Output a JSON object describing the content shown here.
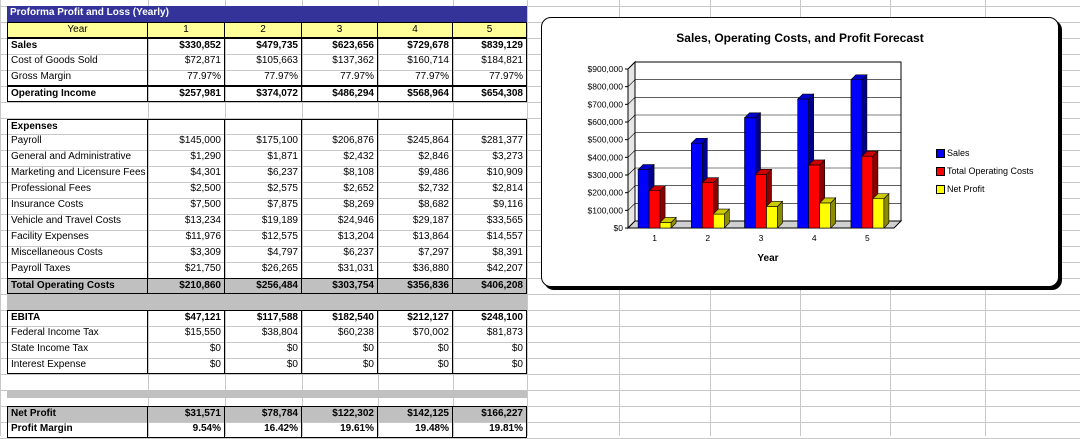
{
  "table": {
    "title": "Proforma Profit and Loss (Yearly)",
    "year_label": "Year",
    "years": [
      "1",
      "2",
      "3",
      "4",
      "5"
    ],
    "gross_rows": [
      {
        "label": "Sales",
        "values": [
          "$330,852",
          "$479,735",
          "$623,656",
          "$729,678",
          "$839,129"
        ],
        "bold": true
      },
      {
        "label": "Cost of Goods Sold",
        "values": [
          "$72,871",
          "$105,663",
          "$137,362",
          "$160,714",
          "$184,821"
        ],
        "bold": false
      },
      {
        "label": "Gross Margin",
        "values": [
          "77.97%",
          "77.97%",
          "77.97%",
          "77.97%",
          "77.97%"
        ],
        "bold": false
      }
    ],
    "operating_income": {
      "label": "Operating Income",
      "values": [
        "$257,981",
        "$374,072",
        "$486,294",
        "$568,964",
        "$654,308"
      ]
    },
    "expenses_header": "Expenses",
    "expense_rows": [
      {
        "label": "Payroll",
        "values": [
          "$145,000",
          "$175,100",
          "$206,876",
          "$245,864",
          "$281,377"
        ]
      },
      {
        "label": "General and Administrative",
        "values": [
          "$1,290",
          "$1,871",
          "$2,432",
          "$2,846",
          "$3,273"
        ]
      },
      {
        "label": "Marketing and Licensure Fees",
        "values": [
          "$4,301",
          "$6,237",
          "$8,108",
          "$9,486",
          "$10,909"
        ]
      },
      {
        "label": "Professional Fees",
        "values": [
          "$2,500",
          "$2,575",
          "$2,652",
          "$2,732",
          "$2,814"
        ]
      },
      {
        "label": "Insurance Costs",
        "values": [
          "$7,500",
          "$7,875",
          "$8,269",
          "$8,682",
          "$9,116"
        ]
      },
      {
        "label": "Vehicle and Travel Costs",
        "values": [
          "$13,234",
          "$19,189",
          "$24,946",
          "$29,187",
          "$33,565"
        ]
      },
      {
        "label": "Facility Expenses",
        "values": [
          "$11,976",
          "$12,575",
          "$13,204",
          "$13,864",
          "$14,557"
        ]
      },
      {
        "label": "Miscellaneous Costs",
        "values": [
          "$3,309",
          "$4,797",
          "$6,237",
          "$7,297",
          "$8,391"
        ]
      },
      {
        "label": "Payroll Taxes",
        "values": [
          "$21,750",
          "$26,265",
          "$31,031",
          "$36,880",
          "$42,207"
        ]
      }
    ],
    "total_operating": {
      "label": "Total Operating Costs",
      "values": [
        "$210,860",
        "$256,484",
        "$303,754",
        "$356,836",
        "$406,208"
      ]
    },
    "ebita": {
      "label": "EBITA",
      "values": [
        "$47,121",
        "$117,588",
        "$182,540",
        "$212,127",
        "$248,100"
      ]
    },
    "tax_rows": [
      {
        "label": "Federal Income Tax",
        "values": [
          "$15,550",
          "$38,804",
          "$60,238",
          "$70,002",
          "$81,873"
        ]
      },
      {
        "label": "State Income Tax",
        "values": [
          "$0",
          "$0",
          "$0",
          "$0",
          "$0"
        ]
      },
      {
        "label": "Interest Expense",
        "values": [
          "$0",
          "$0",
          "$0",
          "$0",
          "$0"
        ]
      }
    ],
    "net_profit": {
      "label": "Net Profit",
      "values": [
        "$31,571",
        "$78,784",
        "$122,302",
        "$142,125",
        "$166,227"
      ]
    },
    "profit_margin": {
      "label": "Profit Margin",
      "values": [
        "9.54%",
        "16.42%",
        "19.61%",
        "19.48%",
        "19.81%"
      ]
    }
  },
  "chart_data": {
    "type": "bar",
    "title": "Sales, Operating Costs, and Profit Forecast",
    "xlabel": "Year",
    "ylabel": "",
    "categories": [
      "1",
      "2",
      "3",
      "4",
      "5"
    ],
    "series": [
      {
        "name": "Sales",
        "values": [
          330852,
          479735,
          623656,
          729678,
          839129
        ],
        "color": "#0000ff"
      },
      {
        "name": "Total Operating Costs",
        "values": [
          210860,
          256484,
          303754,
          356836,
          406208
        ],
        "color": "#ff0000"
      },
      {
        "name": "Net Profit",
        "values": [
          31571,
          78784,
          122302,
          142125,
          166227
        ],
        "color": "#ffff00"
      }
    ],
    "ylim": [
      0,
      900000
    ],
    "y_ticks": [
      0,
      100000,
      200000,
      300000,
      400000,
      500000,
      600000,
      700000,
      800000,
      900000
    ],
    "y_tick_labels": [
      "$0",
      "$100,000",
      "$200,000",
      "$300,000",
      "$400,000",
      "$500,000",
      "$600,000",
      "$700,000",
      "$800,000",
      "$900,000"
    ],
    "grid": true,
    "legend_position": "right",
    "style": "3d-clustered-column"
  }
}
